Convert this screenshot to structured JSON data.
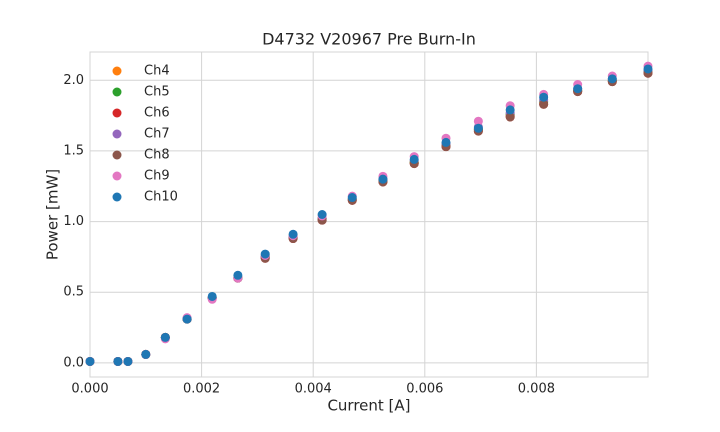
{
  "chart_data": {
    "type": "scatter",
    "title": "D4732 V20967 Pre Burn-In",
    "x_label": "Current [A]",
    "y_label": "Power [mW]",
    "xlim": [
      0,
      0.01
    ],
    "ylim": [
      -0.1,
      2.2
    ],
    "xticks": [
      {
        "value": 0,
        "label": "0.000"
      },
      {
        "value": 0.002,
        "label": "0.002"
      },
      {
        "value": 0.004,
        "label": "0.004"
      },
      {
        "value": 0.006,
        "label": "0.006"
      },
      {
        "value": 0.008,
        "label": "0.008"
      }
    ],
    "yticks": [
      {
        "value": 0,
        "label": "0.0"
      },
      0.5,
      {
        "value": 1,
        "label": "1.0"
      },
      1.5,
      {
        "value": 2,
        "label": "2.0"
      }
    ],
    "grid": true,
    "legend": "upper left",
    "x": [
      0,
      0.0005,
      0.00068,
      0.001,
      0.00135,
      0.00174,
      0.00219,
      0.00265,
      0.00314,
      0.00364,
      0.00416,
      0.0047,
      0.00525,
      0.00581,
      0.00638,
      0.00696,
      0.00753,
      0.00813,
      0.00874,
      0.00936,
      0.01
    ],
    "series": [
      {
        "name": "Ch4",
        "color": "#ff7f0e",
        "values": [
          0.01,
          0.01,
          0.01,
          0.06,
          0.18,
          0.31,
          0.46,
          0.6,
          0.75,
          0.89,
          1.02,
          1.16,
          1.29,
          1.42,
          1.54,
          1.65,
          1.75,
          1.84,
          1.93,
          2.0,
          2.06
        ]
      },
      {
        "name": "Ch5",
        "color": "#2ca02c",
        "values": [
          0.01,
          0.01,
          0.01,
          0.06,
          0.18,
          0.31,
          0.46,
          0.6,
          0.75,
          0.89,
          1.02,
          1.16,
          1.29,
          1.42,
          1.54,
          1.65,
          1.76,
          1.85,
          1.93,
          2.0,
          2.06
        ]
      },
      {
        "name": "Ch6",
        "color": "#d62728",
        "values": [
          0.01,
          0.01,
          0.01,
          0.06,
          0.18,
          0.31,
          0.46,
          0.6,
          0.74,
          0.88,
          1.01,
          1.15,
          1.28,
          1.41,
          1.53,
          1.64,
          1.74,
          1.83,
          1.92,
          1.99,
          2.05
        ]
      },
      {
        "name": "Ch7",
        "color": "#9467bd",
        "values": [
          0.01,
          0.01,
          0.01,
          0.06,
          0.18,
          0.31,
          0.46,
          0.6,
          0.75,
          0.89,
          1.02,
          1.16,
          1.3,
          1.43,
          1.55,
          1.67,
          1.77,
          1.86,
          1.94,
          2.01,
          2.07
        ]
      },
      {
        "name": "Ch8",
        "color": "#8c564b",
        "values": [
          0.01,
          0.01,
          0.01,
          0.06,
          0.18,
          0.31,
          0.46,
          0.6,
          0.74,
          0.88,
          1.01,
          1.15,
          1.28,
          1.41,
          1.53,
          1.64,
          1.74,
          1.83,
          1.92,
          1.99,
          2.05
        ]
      },
      {
        "name": "Ch9",
        "color": "#e377c2",
        "values": [
          0.01,
          0.01,
          0.01,
          0.06,
          0.17,
          0.32,
          0.45,
          0.6,
          0.76,
          0.9,
          1.04,
          1.18,
          1.32,
          1.46,
          1.59,
          1.71,
          1.82,
          1.9,
          1.97,
          2.03,
          2.1
        ]
      },
      {
        "name": "Ch10",
        "color": "#1f77b4",
        "values": [
          0.01,
          0.01,
          0.01,
          0.06,
          0.18,
          0.31,
          0.47,
          0.62,
          0.77,
          0.91,
          1.05,
          1.17,
          1.3,
          1.44,
          1.56,
          1.66,
          1.79,
          1.88,
          1.94,
          2.01,
          2.08
        ]
      }
    ]
  }
}
